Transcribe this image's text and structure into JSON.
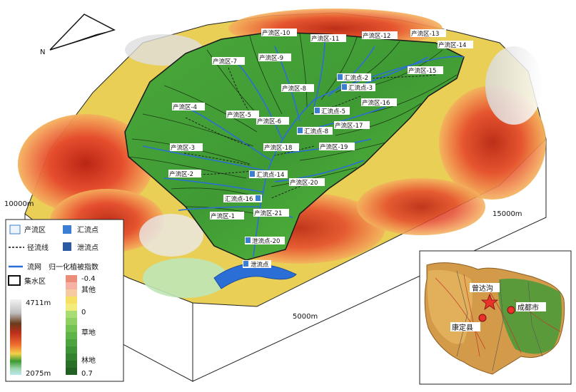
{
  "north_label": "N",
  "scale_labels": {
    "left": "10000m",
    "right": "15000m",
    "bottom": "5000m"
  },
  "runoff_areas": [
    "产流区-1",
    "产流区-2",
    "产流区-3",
    "产流区-4",
    "产流区-5",
    "产流区-6",
    "产流区-7",
    "产流区-8",
    "产流区-9",
    "产流区-10",
    "产流区-11",
    "产流区-12",
    "产流区-13",
    "产流区-14",
    "产流区-15",
    "产流区-16",
    "产流区-17",
    "产流区-18",
    "产流区-19",
    "产流区-20",
    "产流区-21"
  ],
  "confluence_points": [
    "汇流点-2",
    "汇流点-3",
    "汇流点-5",
    "汇流点-8",
    "汇流点-14",
    "汇流点-16",
    "泄流点-20"
  ],
  "outlet_label": "泄流点",
  "legend": {
    "runoff_area": "产流区",
    "confluence_point": "汇流点",
    "flow_path": "径流线",
    "outlet": "泄流点",
    "stream_network": "流网",
    "catchment": "集水区",
    "ndvi_title": "归一化植被指数",
    "elev_max": "4711m",
    "elev_min": "2075m",
    "ndvi_max": "-0.4",
    "ndvi_other": "其他",
    "ndvi_zero": "0",
    "ndvi_grass": "草地",
    "ndvi_forest": "林地",
    "ndvi_min": "0.7"
  },
  "inset": {
    "site": "曾达沟",
    "city": "成都市",
    "county": "康定县"
  },
  "colors": {
    "stream": "#2b6fd6",
    "grass": "#5fbf3a",
    "forest": "#2f7d2a",
    "ndvi_other": "#ec8c7a",
    "star": "#e8322a"
  }
}
